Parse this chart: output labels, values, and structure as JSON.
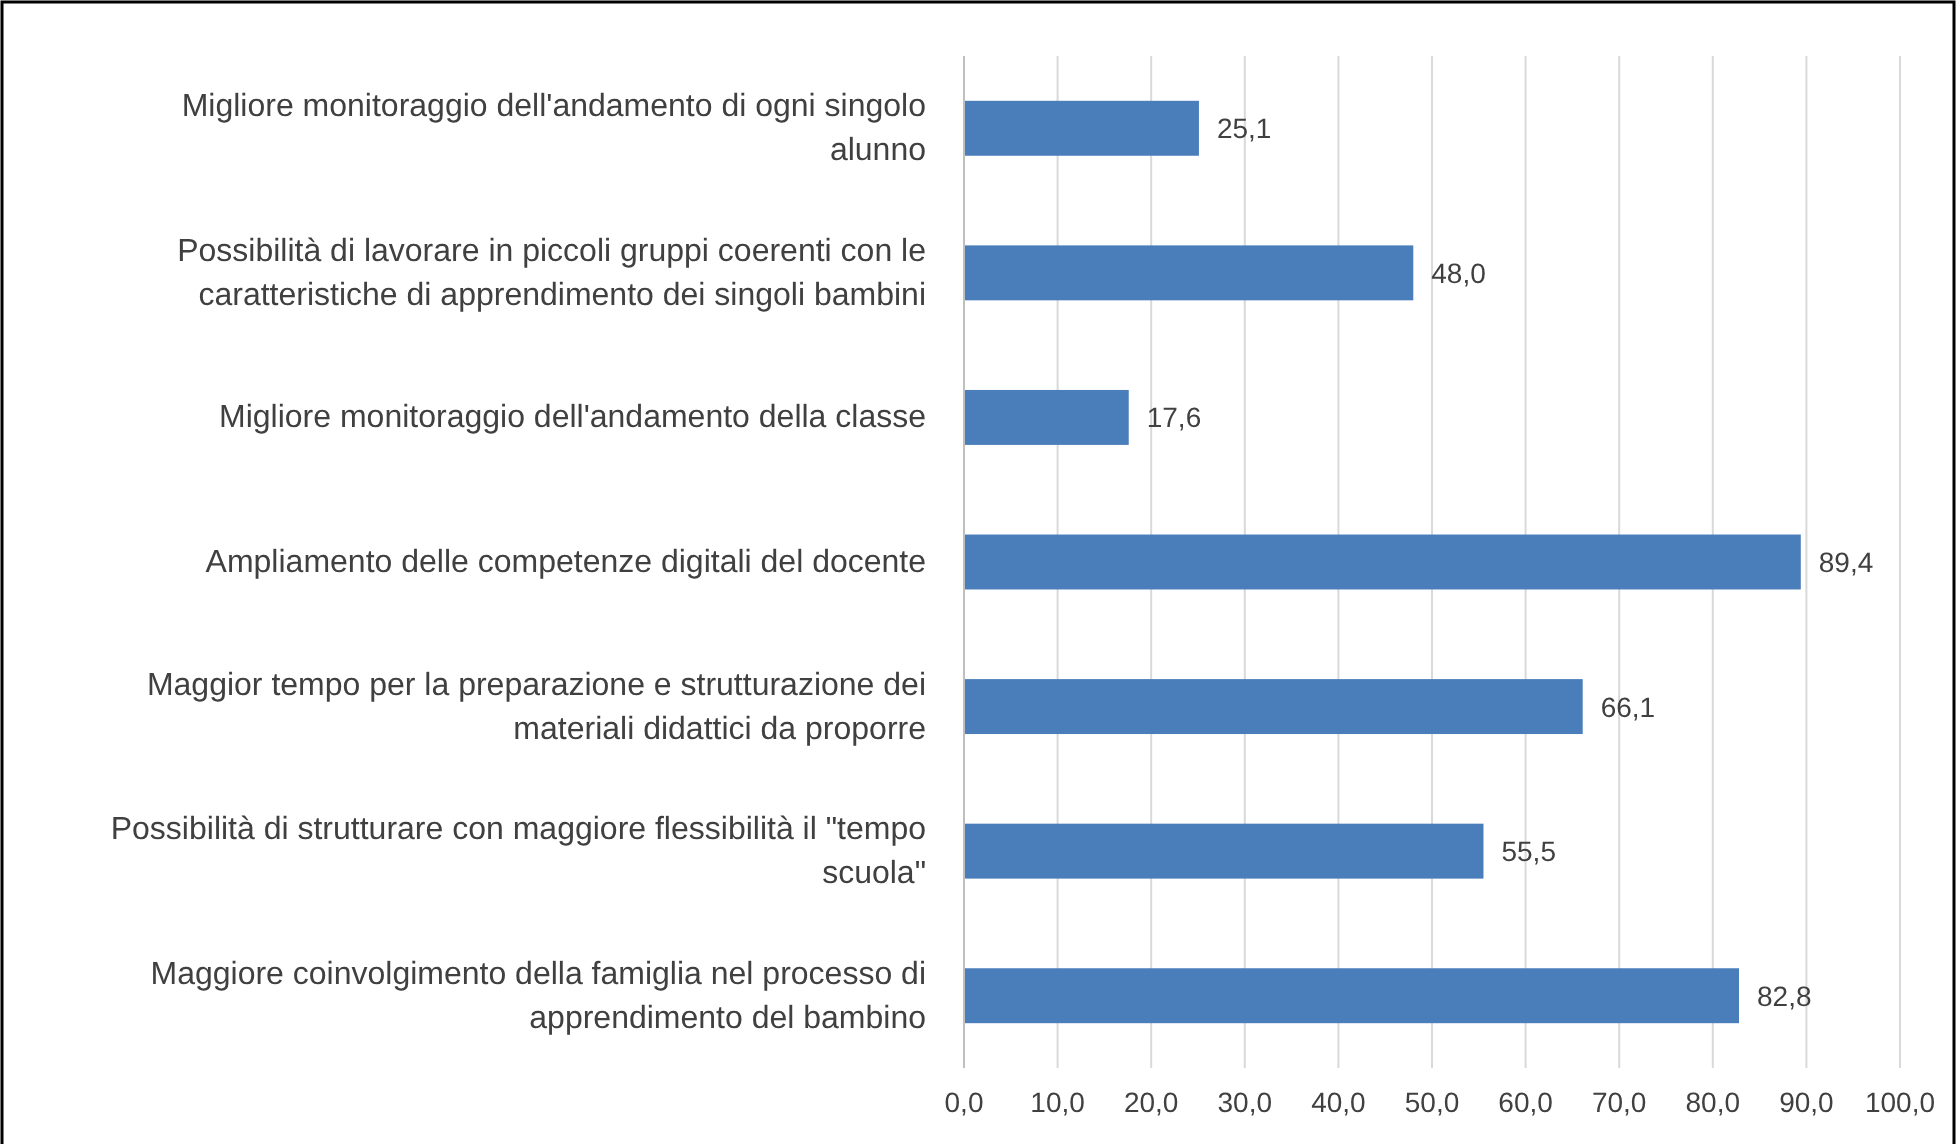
{
  "chart_data": {
    "type": "bar",
    "orientation": "horizontal",
    "categories": [
      "Migliore monitoraggio dell'andamento di ogni singolo alunno",
      "Possibilità di lavorare in piccoli gruppi coerenti con le caratteristiche di apprendimento dei singoli bambini",
      "Migliore monitoraggio dell'andamento della classe",
      "Ampliamento delle competenze digitali del docente",
      "Maggior tempo per la preparazione e strutturazione dei materiali didattici da proporre",
      "Possibilità di strutturare con maggiore flessibilità il \"tempo scuola\"",
      "Maggiore coinvolgimento della famiglia nel processo di apprendimento del bambino"
    ],
    "values": [
      25.1,
      48.0,
      17.6,
      89.4,
      66.1,
      55.5,
      82.8
    ],
    "value_labels": [
      "25,1",
      "48,0",
      "17,6",
      "89,4",
      "66,1",
      "55,5",
      "82,8"
    ],
    "color": "#4a7ebb",
    "xlim": [
      0,
      100
    ],
    "xticks": [
      {
        "value": 0,
        "label": "0,0"
      },
      {
        "value": 10,
        "label": "10,0"
      },
      {
        "value": 20,
        "label": "20,0"
      },
      {
        "value": 30,
        "label": "30,0"
      },
      {
        "value": 40,
        "label": "40,0"
      },
      {
        "value": 50,
        "label": "50,0"
      },
      {
        "value": 60,
        "label": "60,0"
      },
      {
        "value": 70,
        "label": "70,0"
      },
      {
        "value": 80,
        "label": "80,0"
      },
      {
        "value": 90,
        "label": "90,0"
      },
      {
        "value": 100,
        "label": "100,0"
      }
    ],
    "grid": "x"
  }
}
